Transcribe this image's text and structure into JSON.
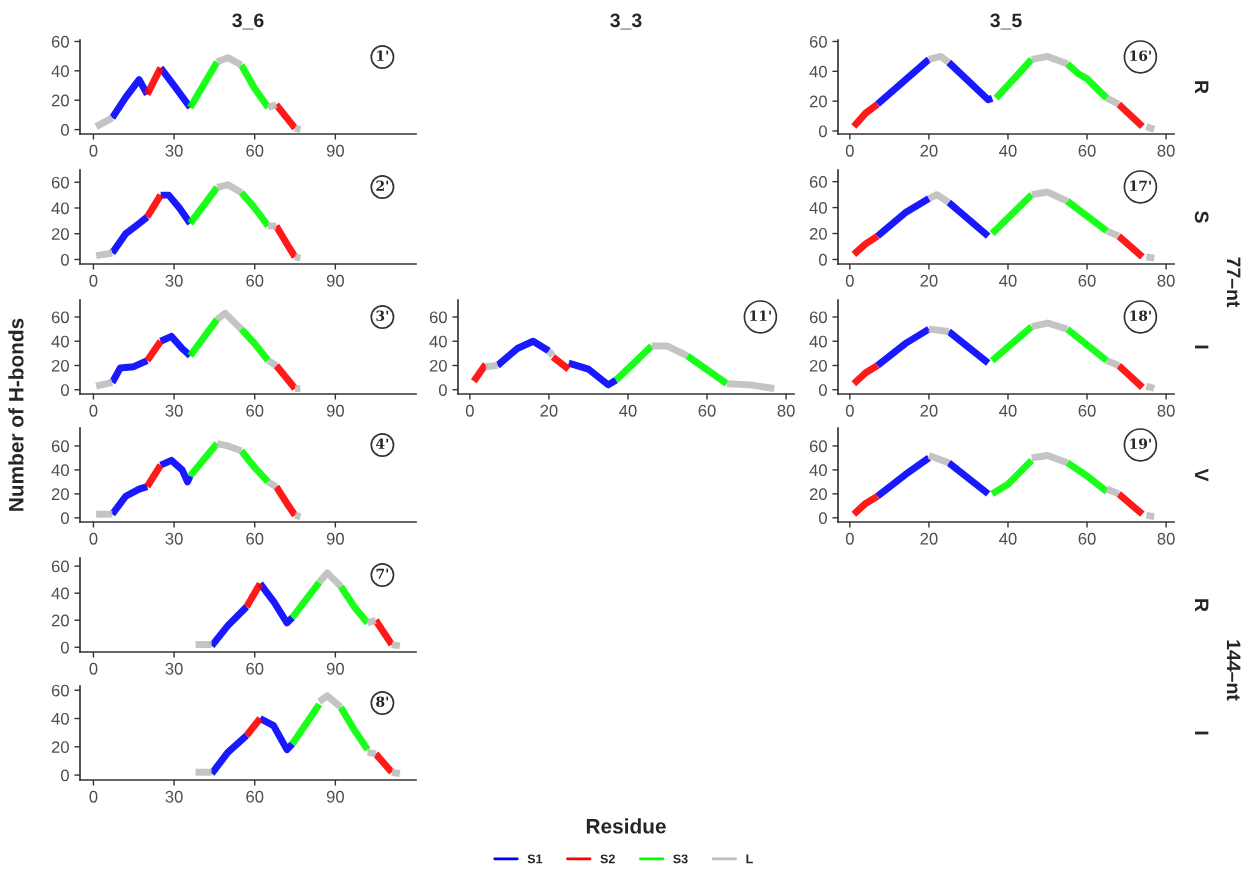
{
  "chart_data": [
    {
      "type": "line",
      "title": "3_6",
      "legend": "bottom",
      "xlim": [
        -5,
        120
      ],
      "ylim": [
        -3,
        61
      ],
      "xticks": [
        0,
        30,
        60,
        90
      ],
      "yticks": [
        0,
        20,
        40,
        60
      ],
      "annotations": [
        "1'"
      ],
      "series": [
        {
          "name": "S1",
          "color": "#0000ff",
          "x": [
            7,
            12,
            17,
            20,
            22.5,
            25,
            30,
            36
          ],
          "values": [
            8,
            22,
            34,
            24,
            null,
            42,
            30,
            15
          ]
        },
        {
          "name": "S2",
          "color": "#ff0000",
          "x": [
            20,
            25,
            46,
            68,
            75
          ],
          "values": [
            24,
            42,
            null,
            17,
            1
          ]
        },
        {
          "name": "S3",
          "color": "#00ff00",
          "x": [
            36,
            46,
            50,
            55,
            60,
            65
          ],
          "values": [
            15,
            46,
            null,
            44,
            28,
            15
          ]
        },
        {
          "name": "L",
          "color": "#bebebe",
          "x": [
            1,
            7,
            26,
            46,
            50,
            55,
            60,
            65,
            68,
            71,
            75,
            77
          ],
          "values": [
            2,
            8,
            null,
            46,
            49,
            44,
            null,
            15,
            17,
            null,
            1,
            0
          ]
        }
      ]
    },
    {
      "type": "line",
      "title": "3_5",
      "xlim": [
        -3,
        82
      ],
      "ylim": [
        -2,
        61
      ],
      "xticks": [
        0,
        20,
        40,
        60,
        80
      ],
      "yticks": [
        0,
        20,
        40,
        60
      ],
      "annotations": [
        "16'",
        "R"
      ],
      "series": [
        {
          "color": "#0000ff",
          "x": [
            7,
            20,
            22.5,
            25,
            35,
            36
          ],
          "values": [
            18,
            48,
            null,
            46,
            21,
            22
          ]
        },
        {
          "color": "#ff0000",
          "x": [
            1,
            4,
            7,
            37,
            68,
            74
          ],
          "values": [
            3,
            12,
            18,
            null,
            18,
            3
          ]
        },
        {
          "color": "#00ff00",
          "x": [
            37,
            46,
            50,
            55,
            58,
            60,
            65
          ],
          "values": [
            22,
            48,
            null,
            45,
            38,
            35,
            22
          ]
        },
        {
          "color": "#bebebe",
          "x": [
            20,
            23,
            25,
            35,
            46,
            50,
            55,
            60,
            65,
            68,
            71,
            75,
            77
          ],
          "values": [
            48,
            50,
            46,
            null,
            48,
            50,
            45,
            null,
            22,
            18,
            null,
            3,
            1
          ]
        }
      ]
    },
    {
      "type": "line",
      "xlim": [
        -5,
        120
      ],
      "ylim": [
        -3.5,
        69.5
      ],
      "xticks": [
        0,
        30,
        60,
        90
      ],
      "yticks": [
        0,
        20,
        40,
        60
      ],
      "annotations": [
        "2'"
      ],
      "series": [
        {
          "color": "#0000ff",
          "x": [
            7,
            12,
            17,
            20,
            22.5,
            25,
            28,
            32,
            36
          ],
          "values": [
            5,
            20,
            28,
            33,
            null,
            50,
            50,
            40,
            28
          ]
        },
        {
          "color": "#ff0000",
          "x": [
            20,
            25,
            46,
            68,
            72,
            75
          ],
          "values": [
            33,
            50,
            null,
            26,
            12,
            2
          ]
        },
        {
          "color": "#00ff00",
          "x": [
            36,
            41,
            46,
            50,
            55,
            60,
            65
          ],
          "values": [
            28,
            42,
            56,
            null,
            52,
            40,
            26
          ]
        },
        {
          "color": "#bebebe",
          "x": [
            1,
            7,
            26,
            46,
            50,
            55,
            60,
            65,
            68,
            71,
            75,
            77
          ],
          "values": [
            3,
            5,
            null,
            56,
            58,
            52,
            null,
            26,
            26,
            null,
            2,
            1
          ]
        }
      ]
    },
    {
      "type": "line",
      "xlim": [
        -3,
        82
      ],
      "ylim": [
        -3.5,
        69
      ],
      "xticks": [
        0,
        20,
        40,
        60,
        80
      ],
      "yticks": [
        0,
        20,
        40,
        60
      ],
      "annotations": [
        "17'",
        "S",
        "77–nt"
      ],
      "series": [
        {
          "color": "#0000ff",
          "x": [
            7,
            14,
            20,
            22.5,
            25,
            35
          ],
          "values": [
            18,
            36,
            47,
            null,
            44,
            18
          ]
        },
        {
          "color": "#ff0000",
          "x": [
            1,
            4,
            7,
            37,
            68,
            74
          ],
          "values": [
            4,
            12,
            18,
            null,
            18,
            2
          ]
        },
        {
          "color": "#00ff00",
          "x": [
            36,
            46,
            50,
            55,
            65
          ],
          "values": [
            20,
            50,
            null,
            45,
            22
          ]
        },
        {
          "color": "#bebebe",
          "x": [
            20,
            22,
            25,
            35,
            46,
            50,
            55,
            60,
            65,
            68,
            71,
            75,
            77
          ],
          "values": [
            47,
            50,
            44,
            null,
            50,
            52,
            45,
            null,
            22,
            18,
            null,
            2,
            1
          ]
        }
      ]
    },
    {
      "type": "line",
      "ylabel": "Number of H-bonds",
      "xlim": [
        -5,
        120
      ],
      "ylim": [
        -3.5,
        74
      ],
      "xticks": [
        0,
        30,
        60,
        90
      ],
      "yticks": [
        0,
        20,
        40,
        60
      ],
      "annotations": [
        "3'"
      ],
      "series": [
        {
          "color": "#0000ff",
          "x": [
            7,
            10,
            15,
            20,
            22.5,
            25,
            29,
            33,
            36
          ],
          "values": [
            6,
            18,
            19,
            24,
            null,
            40,
            44,
            34,
            28
          ]
        },
        {
          "color": "#ff0000",
          "x": [
            20,
            25,
            46,
            68,
            75
          ],
          "values": [
            24,
            40,
            null,
            20,
            1
          ]
        },
        {
          "color": "#00ff00",
          "x": [
            36,
            46,
            50,
            55,
            60,
            65
          ],
          "values": [
            28,
            58,
            null,
            50,
            38,
            24
          ]
        },
        {
          "color": "#bebebe",
          "x": [
            1,
            7,
            26,
            46,
            49,
            55,
            60,
            65,
            68,
            71,
            75,
            77
          ],
          "values": [
            3,
            6,
            null,
            58,
            63,
            50,
            null,
            24,
            20,
            null,
            1,
            1
          ]
        }
      ]
    },
    {
      "type": "line",
      "title": "3_3",
      "xlabel": "Residue",
      "xlim": [
        -3,
        82
      ],
      "ylim": [
        -3.5,
        74
      ],
      "xticks": [
        0,
        20,
        40,
        60,
        80
      ],
      "yticks": [
        0,
        20,
        40,
        60
      ],
      "annotations": [
        "11'"
      ],
      "series": [
        {
          "color": "#0000ff",
          "x": [
            7,
            12,
            16,
            20,
            22.5,
            25,
            30,
            35,
            37
          ],
          "values": [
            20,
            34,
            40,
            32,
            null,
            22,
            17,
            4,
            8
          ]
        },
        {
          "color": "#ff0000",
          "x": [
            1,
            4,
            12,
            21,
            25
          ],
          "values": [
            7,
            21,
            null,
            27,
            17
          ]
        },
        {
          "color": "#00ff00",
          "x": [
            37,
            46,
            50,
            55,
            65
          ],
          "values": [
            8,
            36,
            null,
            28,
            5
          ]
        },
        {
          "color": "#bebebe",
          "x": [
            4,
            7,
            13,
            20,
            21,
            33,
            46,
            50,
            55,
            60,
            65,
            71,
            77
          ],
          "values": [
            19,
            20,
            null,
            32,
            28,
            null,
            36,
            36,
            28,
            null,
            5,
            4,
            1
          ]
        }
      ]
    },
    {
      "type": "line",
      "xlim": [
        -3,
        82
      ],
      "ylim": [
        -3.5,
        74
      ],
      "xticks": [
        0,
        20,
        40,
        60,
        80
      ],
      "yticks": [
        0,
        20,
        40,
        60
      ],
      "annotations": [
        "18'",
        "I"
      ],
      "series": [
        {
          "color": "#0000ff",
          "x": [
            7,
            14,
            20,
            22.5,
            25,
            35
          ],
          "values": [
            20,
            38,
            50,
            null,
            48,
            22
          ]
        },
        {
          "color": "#ff0000",
          "x": [
            1,
            4,
            7,
            37,
            68,
            74
          ],
          "values": [
            5,
            14,
            20,
            null,
            20,
            2
          ]
        },
        {
          "color": "#00ff00",
          "x": [
            36,
            46,
            50,
            55,
            65
          ],
          "values": [
            24,
            52,
            null,
            50,
            24
          ]
        },
        {
          "color": "#bebebe",
          "x": [
            20,
            25,
            30,
            46,
            50,
            55,
            60,
            65,
            68,
            71,
            75,
            77
          ],
          "values": [
            50,
            48,
            null,
            52,
            55,
            50,
            null,
            24,
            20,
            null,
            3,
            1
          ]
        }
      ]
    },
    {
      "type": "line",
      "xlim": [
        -5,
        120
      ],
      "ylim": [
        -3.5,
        75
      ],
      "xticks": [
        0,
        30,
        60,
        90
      ],
      "yticks": [
        0,
        20,
        40,
        60
      ],
      "annotations": [
        "4'"
      ],
      "series": [
        {
          "color": "#0000ff",
          "x": [
            7,
            12,
            17,
            20,
            22.5,
            25,
            29,
            33,
            35,
            36
          ],
          "values": [
            3,
            18,
            24,
            26,
            null,
            44,
            48,
            40,
            30,
            35
          ]
        },
        {
          "color": "#ff0000",
          "x": [
            20,
            25,
            46,
            68,
            72,
            75
          ],
          "values": [
            26,
            44,
            null,
            26,
            12,
            2
          ]
        },
        {
          "color": "#00ff00",
          "x": [
            36,
            46,
            50,
            55,
            60,
            65
          ],
          "values": [
            35,
            62,
            null,
            56,
            42,
            30
          ]
        },
        {
          "color": "#bebebe",
          "x": [
            1,
            7,
            26,
            46,
            50,
            55,
            60,
            65,
            68,
            71,
            75,
            77
          ],
          "values": [
            3,
            3,
            null,
            62,
            60,
            56,
            null,
            30,
            26,
            null,
            2,
            1
          ]
        }
      ]
    },
    {
      "type": "line",
      "xlim": [
        -3,
        82
      ],
      "ylim": [
        -3.5,
        75
      ],
      "xticks": [
        0,
        20,
        40,
        60,
        80
      ],
      "yticks": [
        0,
        20,
        40,
        60
      ],
      "annotations": [
        "19'",
        "V"
      ],
      "series": [
        {
          "color": "#0000ff",
          "x": [
            7,
            14,
            20,
            22.5,
            25,
            35
          ],
          "values": [
            18,
            36,
            50,
            null,
            46,
            20
          ]
        },
        {
          "color": "#ff0000",
          "x": [
            1,
            4,
            7,
            37,
            68,
            74
          ],
          "values": [
            3,
            12,
            18,
            null,
            20,
            3
          ]
        },
        {
          "color": "#00ff00",
          "x": [
            36,
            40,
            46,
            50,
            55,
            60,
            65
          ],
          "values": [
            20,
            28,
            48,
            null,
            46,
            35,
            22
          ]
        },
        {
          "color": "#bebebe",
          "x": [
            20,
            25,
            30,
            46,
            50,
            55,
            60,
            65,
            68,
            71,
            75,
            77
          ],
          "values": [
            52,
            46,
            null,
            50,
            52,
            46,
            null,
            24,
            20,
            null,
            2,
            1
          ]
        }
      ]
    },
    {
      "type": "line",
      "xlim": [
        -5,
        120
      ],
      "ylim": [
        -3.5,
        66
      ],
      "xticks": [
        0,
        30,
        60,
        90
      ],
      "yticks": [
        0,
        20,
        40,
        60
      ],
      "annotations": [
        "7'",
        "R",
        "144–nt"
      ],
      "series": [
        {
          "color": "#0000ff",
          "x": [
            44,
            50,
            57,
            59.5,
            62,
            67,
            72,
            74
          ],
          "values": [
            1,
            16,
            30,
            null,
            47,
            34,
            18,
            22
          ]
        },
        {
          "color": "#ff0000",
          "x": [
            57,
            62,
            83,
            105,
            111
          ],
          "values": [
            30,
            47,
            null,
            20,
            2
          ]
        },
        {
          "color": "#00ff00",
          "x": [
            74,
            84,
            88,
            92,
            97,
            102
          ],
          "values": [
            22,
            48,
            null,
            45,
            30,
            18
          ]
        },
        {
          "color": "#bebebe",
          "x": [
            38,
            44,
            64,
            84,
            87,
            92,
            97,
            102,
            105,
            108,
            111,
            114
          ],
          "values": [
            2,
            2,
            null,
            48,
            55,
            45,
            null,
            18,
            20,
            null,
            2,
            1
          ]
        }
      ]
    },
    {
      "type": "line",
      "xlim": [
        -5,
        120
      ],
      "ylim": [
        -3.5,
        63
      ],
      "xticks": [
        0,
        30,
        60,
        90
      ],
      "yticks": [
        0,
        20,
        40,
        60
      ],
      "annotations": [
        "8'",
        "I"
      ],
      "series": [
        {
          "color": "#0000ff",
          "x": [
            44,
            50,
            57,
            59.5,
            62,
            67,
            72,
            74
          ],
          "values": [
            1,
            16,
            28,
            null,
            40,
            35,
            18,
            22
          ]
        },
        {
          "color": "#ff0000",
          "x": [
            57,
            62,
            83,
            105,
            111
          ],
          "values": [
            28,
            40,
            null,
            15,
            2
          ]
        },
        {
          "color": "#00ff00",
          "x": [
            74,
            84,
            88,
            92,
            97,
            102
          ],
          "values": [
            22,
            50,
            null,
            48,
            32,
            18
          ]
        },
        {
          "color": "#bebebe",
          "x": [
            38,
            44,
            64,
            84,
            87,
            92,
            97,
            102,
            105,
            108,
            111,
            114
          ],
          "values": [
            2,
            2,
            null,
            52,
            56,
            48,
            null,
            16,
            15,
            null,
            2,
            1
          ]
        }
      ]
    }
  ]
}
